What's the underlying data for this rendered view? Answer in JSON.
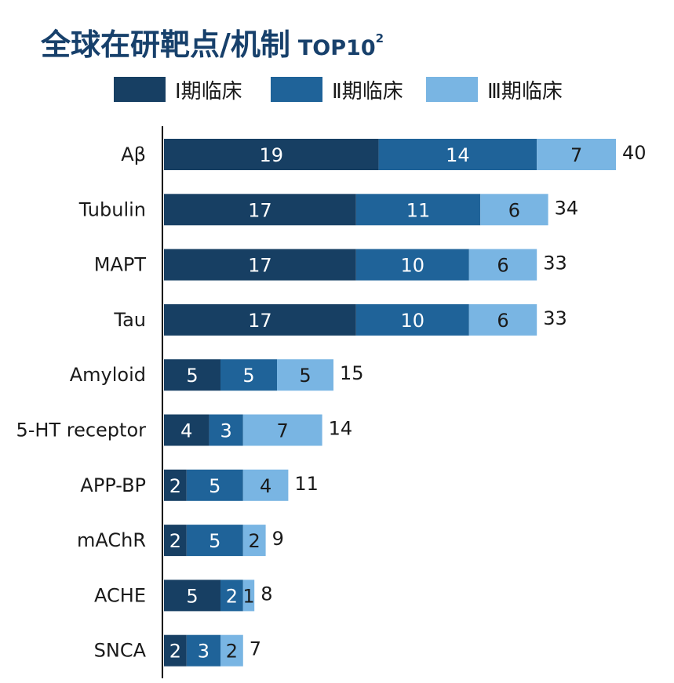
{
  "chart_data": {
    "type": "bar",
    "orientation": "horizontal",
    "stacked": true,
    "title": "全球在研靶点/机制",
    "title_suffix": "TOP10",
    "title_superscript": "2",
    "categories": [
      "Aβ",
      "Tubulin",
      "MAPT",
      "Tau",
      "Amyloid",
      "5-HT receptor",
      "APP-BP",
      "mAChR",
      "ACHE",
      "SNCA"
    ],
    "series": [
      {
        "name": "Ⅰ期临床",
        "color": "#173F63",
        "values": [
          19,
          17,
          17,
          17,
          5,
          4,
          2,
          2,
          5,
          2
        ]
      },
      {
        "name": "Ⅱ期临床",
        "color": "#1F6399",
        "values": [
          14,
          11,
          10,
          10,
          5,
          3,
          5,
          5,
          2,
          3
        ]
      },
      {
        "name": "Ⅲ期临床",
        "color": "#79B5E3",
        "values": [
          7,
          6,
          6,
          6,
          5,
          7,
          4,
          2,
          1,
          2
        ]
      }
    ],
    "totals": [
      40,
      34,
      33,
      33,
      15,
      14,
      11,
      9,
      8,
      7
    ],
    "legend_position": "top",
    "grid": false
  }
}
